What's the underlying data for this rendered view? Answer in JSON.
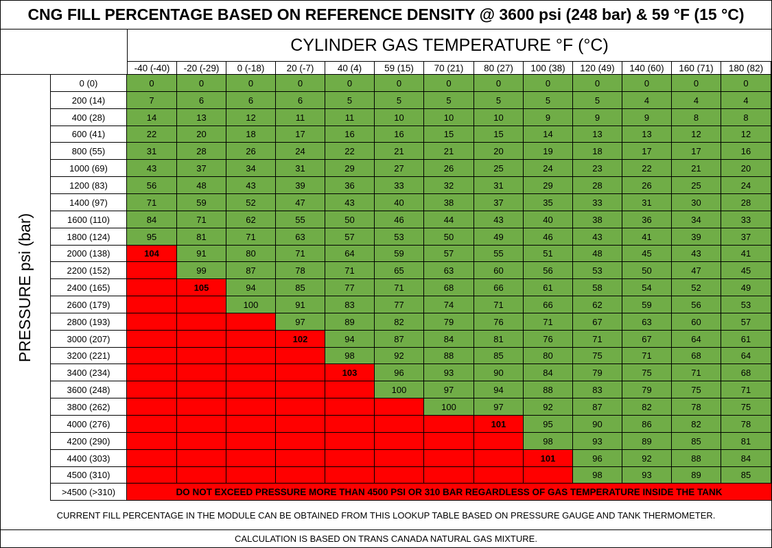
{
  "title": "CNG FILL PERCENTAGE BASED ON REFERENCE DENSITY @ 3600 psi (248 bar) & 59 °F (15 °C)",
  "temperature_header": "CYLINDER GAS TEMPERATURE °F (°C)",
  "pressure_axis_label": "PRESSURE psi (bar)",
  "temperatures": [
    "-40 (-40)",
    "-20 (-29)",
    "0 (-18)",
    "20 (-7)",
    "40 (4)",
    "59 (15)",
    "70 (21)",
    "80 (27)",
    "100 (38)",
    "120 (49)",
    "140 (60)",
    "160 (71)",
    "180 (82)"
  ],
  "pressures": [
    "0 (0)",
    "200 (14)",
    "400 (28)",
    "600 (41)",
    "800 (55)",
    "1000 (69)",
    "1200 (83)",
    "1400 (97)",
    "1600 (110)",
    "1800 (124)",
    "2000 (138)",
    "2200 (152)",
    "2400 (165)",
    "2600 (179)",
    "2800 (193)",
    "3000 (207)",
    "3200 (221)",
    "3400 (234)",
    "3600 (248)",
    "3800 (262)",
    "4000 (276)",
    "4200 (290)",
    "4400 (303)",
    "4500 (310)"
  ],
  "rows": [
    [
      "0",
      "0",
      "0",
      "0",
      "0",
      "0",
      "0",
      "0",
      "0",
      "0",
      "0",
      "0",
      "0"
    ],
    [
      "7",
      "6",
      "6",
      "6",
      "5",
      "5",
      "5",
      "5",
      "5",
      "5",
      "4",
      "4",
      "4"
    ],
    [
      "14",
      "13",
      "12",
      "11",
      "11",
      "10",
      "10",
      "10",
      "9",
      "9",
      "9",
      "8",
      "8"
    ],
    [
      "22",
      "20",
      "18",
      "17",
      "16",
      "16",
      "15",
      "15",
      "14",
      "13",
      "13",
      "12",
      "12"
    ],
    [
      "31",
      "28",
      "26",
      "24",
      "22",
      "21",
      "21",
      "20",
      "19",
      "18",
      "17",
      "17",
      "16"
    ],
    [
      "43",
      "37",
      "34",
      "31",
      "29",
      "27",
      "26",
      "25",
      "24",
      "23",
      "22",
      "21",
      "20"
    ],
    [
      "56",
      "48",
      "43",
      "39",
      "36",
      "33",
      "32",
      "31",
      "29",
      "28",
      "26",
      "25",
      "24"
    ],
    [
      "71",
      "59",
      "52",
      "47",
      "43",
      "40",
      "38",
      "37",
      "35",
      "33",
      "31",
      "30",
      "28"
    ],
    [
      "84",
      "71",
      "62",
      "55",
      "50",
      "46",
      "44",
      "43",
      "40",
      "38",
      "36",
      "34",
      "33"
    ],
    [
      "95",
      "81",
      "71",
      "63",
      "57",
      "53",
      "50",
      "49",
      "46",
      "43",
      "41",
      "39",
      "37"
    ],
    [
      "104",
      "91",
      "80",
      "71",
      "64",
      "59",
      "57",
      "55",
      "51",
      "48",
      "45",
      "43",
      "41"
    ],
    [
      "",
      "99",
      "87",
      "78",
      "71",
      "65",
      "63",
      "60",
      "56",
      "53",
      "50",
      "47",
      "45"
    ],
    [
      "",
      "105",
      "94",
      "85",
      "77",
      "71",
      "68",
      "66",
      "61",
      "58",
      "54",
      "52",
      "49"
    ],
    [
      "",
      "",
      "100",
      "91",
      "83",
      "77",
      "74",
      "71",
      "66",
      "62",
      "59",
      "56",
      "53"
    ],
    [
      "",
      "",
      "",
      "97",
      "89",
      "82",
      "79",
      "76",
      "71",
      "67",
      "63",
      "60",
      "57"
    ],
    [
      "",
      "",
      "",
      "102",
      "94",
      "87",
      "84",
      "81",
      "76",
      "71",
      "67",
      "64",
      "61"
    ],
    [
      "",
      "",
      "",
      "",
      "98",
      "92",
      "88",
      "85",
      "80",
      "75",
      "71",
      "68",
      "64"
    ],
    [
      "",
      "",
      "",
      "",
      "103",
      "96",
      "93",
      "90",
      "84",
      "79",
      "75",
      "71",
      "68"
    ],
    [
      "",
      "",
      "",
      "",
      "",
      "100",
      "97",
      "94",
      "88",
      "83",
      "79",
      "75",
      "71"
    ],
    [
      "",
      "",
      "",
      "",
      "",
      "",
      "100",
      "97",
      "92",
      "87",
      "82",
      "78",
      "75"
    ],
    [
      "",
      "",
      "",
      "",
      "",
      "",
      "",
      "101",
      "95",
      "90",
      "86",
      "82",
      "78"
    ],
    [
      "",
      "",
      "",
      "",
      "",
      "",
      "",
      "",
      "98",
      "93",
      "89",
      "85",
      "81"
    ],
    [
      "",
      "",
      "",
      "",
      "",
      "",
      "",
      "",
      "101",
      "96",
      "92",
      "88",
      "84"
    ],
    [
      "",
      "",
      "",
      "",
      "",
      "",
      "",
      "",
      "",
      "98",
      "93",
      "89",
      "85"
    ]
  ],
  "limit_row_label": ">4500 (>310)",
  "limit_warning": "DO NOT EXCEED PRESSURE MORE THAN 4500 PSI OR 310 BAR REGARDLESS OF GAS TEMPERATURE INSIDE THE TANK",
  "footnote_1": "CURRENT FILL PERCENTAGE IN THE MODULE CAN BE OBTAINED FROM THIS LOOKUP TABLE BASED ON PRESSURE GAUGE AND TANK THERMOMETER.",
  "footnote_2": "CALCULATION IS BASED ON TRANS CANADA NATURAL GAS MIXTURE.",
  "colors": {
    "within_limit": "#70AD47",
    "over_limit": "#FF0000"
  }
}
